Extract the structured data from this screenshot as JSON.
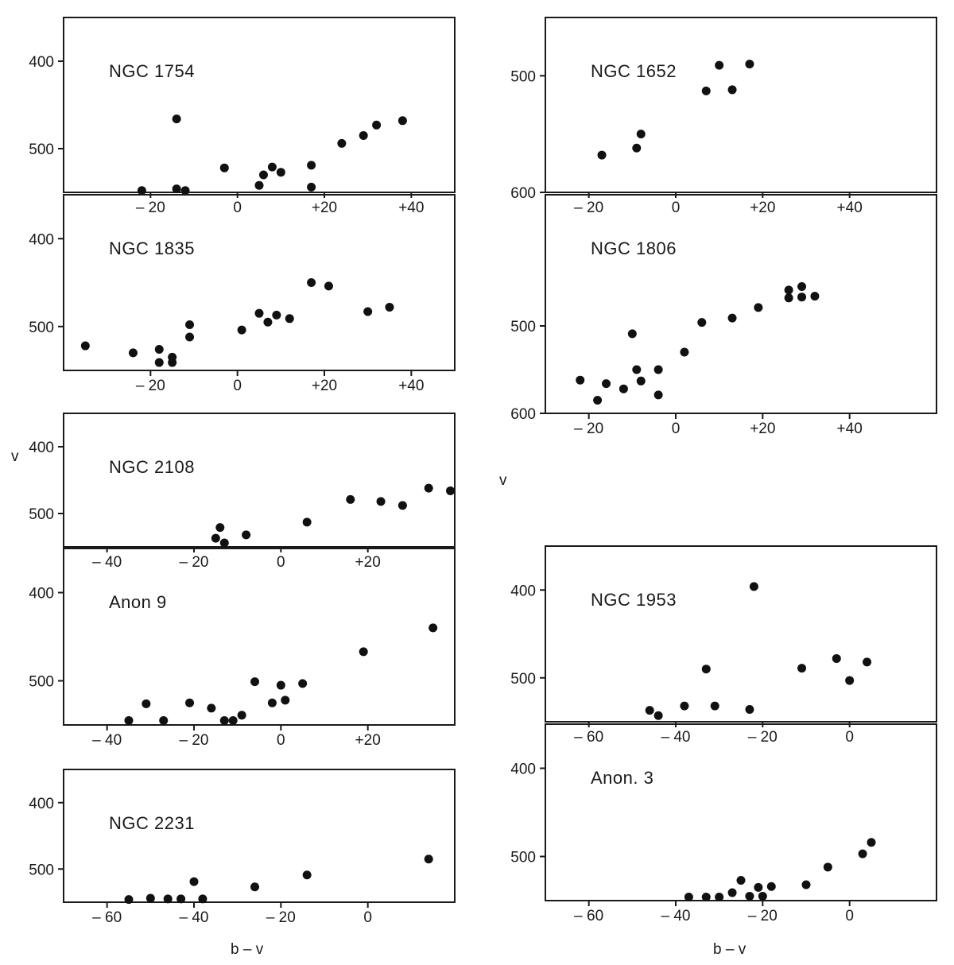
{
  "figure": {
    "y_axis_label": "v",
    "x_axis_label": "b – v",
    "ink_color": "#111111"
  },
  "chart_data": [
    {
      "type": "scatter",
      "title": "NGC 1754",
      "xlim": [
        -40,
        50
      ],
      "ylim": [
        550,
        350
      ],
      "xticks": [
        -20,
        0,
        20,
        40
      ],
      "xtick_labels": [
        "– 20",
        "0",
        "+20",
        "+40"
      ],
      "yticks": [
        400,
        500
      ],
      "ytick_labels": [
        "400",
        "500"
      ],
      "x": [
        -22,
        -14,
        -12,
        -14,
        -3,
        5,
        6,
        8,
        10,
        17,
        17,
        24,
        29,
        32,
        38
      ],
      "y": [
        548,
        546,
        548,
        466,
        522,
        542,
        530,
        521,
        527,
        519,
        544,
        494,
        485,
        473,
        468
      ]
    },
    {
      "type": "scatter",
      "title": "NGC 1835",
      "xlim": [
        -40,
        50
      ],
      "ylim": [
        550,
        350
      ],
      "xticks": [
        -20,
        0,
        20,
        40
      ],
      "xtick_labels": [
        "– 20",
        "0",
        "+20",
        "+40"
      ],
      "yticks": [
        400,
        500
      ],
      "ytick_labels": [
        "400",
        "500"
      ],
      "x": [
        -35,
        -24,
        -18,
        -18,
        -15,
        -15,
        -11,
        -11,
        1,
        5,
        7,
        9,
        12,
        17,
        21,
        30,
        35
      ],
      "y": [
        522,
        530,
        526,
        541,
        535,
        541,
        498,
        512,
        504,
        485,
        495,
        487,
        491,
        450,
        454,
        483,
        478
      ]
    },
    {
      "type": "scatter",
      "title": "NGC 2108",
      "xlim": [
        -50,
        40
      ],
      "ylim": [
        550,
        350
      ],
      "xticks": [
        -40,
        -20,
        0,
        20
      ],
      "xtick_labels": [
        "– 40",
        "– 20",
        "0",
        "+20"
      ],
      "yticks": [
        400,
        500
      ],
      "ytick_labels": [
        "400",
        "500"
      ],
      "x": [
        -15,
        -14,
        -13,
        -8,
        6,
        16,
        23,
        28,
        34,
        39
      ],
      "y": [
        537,
        521,
        544,
        532,
        513,
        479,
        482,
        488,
        462,
        466
      ]
    },
    {
      "type": "scatter",
      "title": "Anon 9",
      "xlim": [
        -50,
        40
      ],
      "ylim": [
        550,
        350
      ],
      "xticks": [
        -40,
        -20,
        0,
        20
      ],
      "xtick_labels": [
        "– 40",
        "– 20",
        "0",
        "+20"
      ],
      "yticks": [
        400,
        500
      ],
      "ytick_labels": [
        "400",
        "500"
      ],
      "x": [
        -35,
        -31,
        -27,
        -21,
        -16,
        -13,
        -11,
        -9,
        -6,
        -2,
        0,
        1,
        5,
        19,
        35
      ],
      "y": [
        545,
        526,
        545,
        525,
        531,
        545,
        545,
        539,
        501,
        525,
        505,
        522,
        503,
        467,
        440
      ]
    },
    {
      "type": "scatter",
      "title": "NGC 2231",
      "xlim": [
        -70,
        20
      ],
      "ylim": [
        550,
        350
      ],
      "xticks": [
        -60,
        -40,
        -20,
        0
      ],
      "xtick_labels": [
        "– 60",
        "– 40",
        "– 20",
        "0"
      ],
      "yticks": [
        400,
        500
      ],
      "ytick_labels": [
        "400",
        "500"
      ],
      "x": [
        -55,
        -50,
        -46,
        -43,
        -40,
        -38,
        -26,
        -14,
        14
      ],
      "y": [
        546,
        544,
        545,
        545,
        519,
        545,
        527,
        509,
        485
      ]
    },
    {
      "type": "scatter",
      "title": "NGC 1652",
      "xlim": [
        -30,
        60
      ],
      "ylim": [
        600,
        450
      ],
      "xticks": [
        -20,
        0,
        20,
        40
      ],
      "xtick_labels": [
        "– 20",
        "0",
        "+20",
        "+40"
      ],
      "yticks": [
        500,
        600
      ],
      "ytick_labels": [
        "500",
        "600"
      ],
      "x": [
        -17,
        -9,
        -8,
        7,
        10,
        13,
        17
      ],
      "y": [
        568,
        562,
        550,
        513,
        491,
        512,
        490
      ]
    },
    {
      "type": "scatter",
      "title": "NGC 1806",
      "xlim": [
        -30,
        60
      ],
      "ylim": [
        600,
        350
      ],
      "xticks": [
        -20,
        0,
        20,
        40
      ],
      "xtick_labels": [
        "– 20",
        "0",
        "+20",
        "+40"
      ],
      "yticks": [
        500,
        600
      ],
      "ytick_labels": [
        "500",
        "600"
      ],
      "x": [
        -22,
        -18,
        -16,
        -12,
        -10,
        -9,
        -8,
        -4,
        -4,
        2,
        6,
        13,
        19,
        26,
        26,
        29,
        29,
        32
      ],
      "y": [
        562,
        585,
        566,
        572,
        509,
        550,
        563,
        550,
        579,
        530,
        496,
        491,
        479,
        459,
        468,
        455,
        467,
        466
      ]
    },
    {
      "type": "scatter",
      "title": "NGC 1953",
      "xlim": [
        -70,
        20
      ],
      "ylim": [
        550,
        350
      ],
      "xticks": [
        -60,
        -40,
        -20,
        0
      ],
      "xtick_labels": [
        "– 60",
        "– 40",
        "– 20",
        "0"
      ],
      "yticks": [
        400,
        500
      ],
      "ytick_labels": [
        "400",
        "500"
      ],
      "x": [
        -46,
        -44,
        -38,
        -33,
        -31,
        -23,
        -22,
        -11,
        -3,
        0,
        4
      ],
      "y": [
        537,
        543,
        532,
        490,
        532,
        536,
        396,
        489,
        478,
        503,
        482
      ]
    },
    {
      "type": "scatter",
      "title": "Anon. 3",
      "xlim": [
        -70,
        20
      ],
      "ylim": [
        550,
        350
      ],
      "xticks": [
        -60,
        -40,
        -20,
        0
      ],
      "xtick_labels": [
        "– 60",
        "– 40",
        "– 20",
        "0"
      ],
      "yticks": [
        400,
        500
      ],
      "ytick_labels": [
        "400",
        "500"
      ],
      "x": [
        -37,
        -33,
        -30,
        -27,
        -25,
        -23,
        -21,
        -20,
        -18,
        -10,
        -5,
        3,
        5
      ],
      "y": [
        546,
        546,
        546,
        541,
        527,
        545,
        535,
        545,
        534,
        532,
        512,
        497,
        484
      ]
    }
  ]
}
